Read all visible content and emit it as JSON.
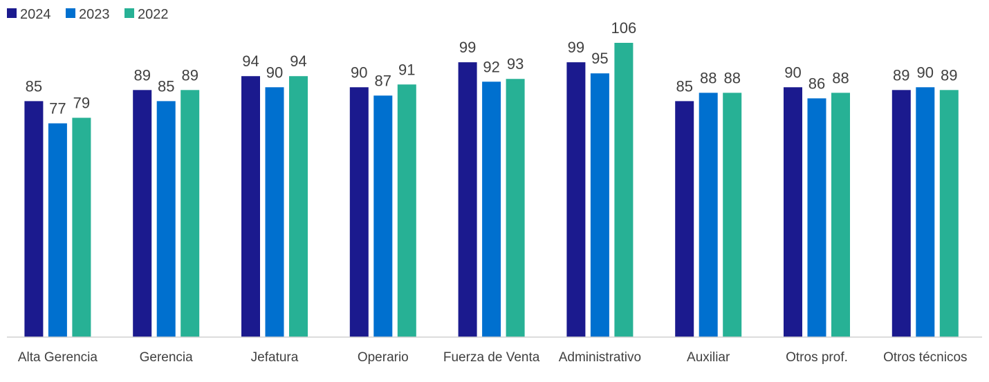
{
  "chart_data": {
    "type": "bar",
    "categories": [
      "Alta Gerencia",
      "Gerencia",
      "Jefatura",
      "Operario",
      "Fuerza de Venta",
      "Administrativo",
      "Auxiliar",
      "Otros prof.",
      "Otros técnicos"
    ],
    "series": [
      {
        "name": "2024",
        "color": "#1b1a8e",
        "values": [
          85,
          89,
          94,
          90,
          99,
          99,
          85,
          90,
          89
        ]
      },
      {
        "name": "2023",
        "color": "#0070cf",
        "values": [
          77,
          85,
          90,
          87,
          92,
          95,
          88,
          86,
          90
        ]
      },
      {
        "name": "2022",
        "color": "#27b195",
        "values": [
          79,
          89,
          94,
          91,
          93,
          106,
          88,
          88,
          89
        ]
      }
    ],
    "legend": "top-left"
  }
}
